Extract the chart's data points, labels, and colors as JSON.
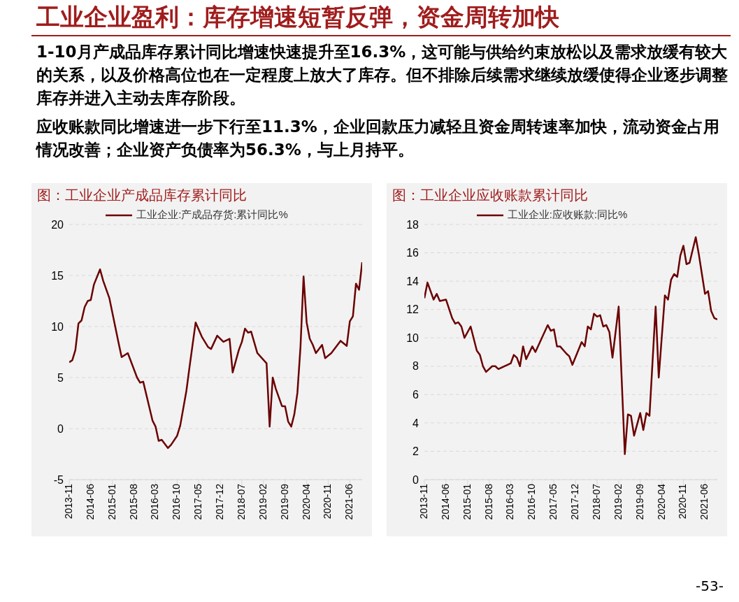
{
  "chart_data": [
    {
      "type": "other",
      "title": "工业企业盈利：库存增速短暂反弹，资金周转加快",
      "annotations": [
        "1-10月产成品库存累计同比增速快速提升至16.3%，这可能与供给约束放松以及需求放缓有较大的关系，以及价格高位也在一定程度上放大了库存。但不排除后续需求继续放缓使得企业逐步调整库存并进入主动去库存阶段。",
        "应收账款同比增速进一步下行至11.3%，企业回款压力减轻且资金周转速率加快，流动资金占用情况改善；企业资产负债率为56.3%，与上月持平。",
        "-53-"
      ]
    },
    {
      "type": "line",
      "title": "图：工业企业产成品库存累计同比",
      "legend": "top",
      "grid": "y",
      "xlim": [
        "2013-11",
        "2021-10"
      ],
      "xticks": [
        "2013-11",
        "2014-06",
        "2015-01",
        "2015-08",
        "2016-03",
        "2016-10",
        "2017-05",
        "2017-12",
        "2018-07",
        "2019-02",
        "2019-09",
        "2020-04",
        "2020-11",
        "2021-06"
      ],
      "ylim": [
        -5,
        20
      ],
      "yticks": [
        -5,
        0,
        5,
        10,
        15,
        20
      ],
      "series": [
        {
          "name": "工业企业:产成品存货:累计同比%",
          "color": "#6b0000",
          "x": [
            "2013-11",
            "2013-12",
            "2014-01",
            "2014-02",
            "2014-03",
            "2014-04",
            "2014-05",
            "2014-06",
            "2014-07",
            "2014-09",
            "2014-10",
            "2014-12",
            "2015-03",
            "2015-04",
            "2015-06",
            "2015-09",
            "2015-10",
            "2015-11",
            "2016-02",
            "2016-03",
            "2016-04",
            "2016-05",
            "2016-07",
            "2016-08",
            "2016-10",
            "2016-11",
            "2017-01",
            "2017-02",
            "2017-04",
            "2017-06",
            "2017-08",
            "2017-09",
            "2017-11",
            "2018-01",
            "2018-03",
            "2018-04",
            "2018-06",
            "2018-07",
            "2018-08",
            "2018-09",
            "2018-10",
            "2018-12",
            "2019-03",
            "2019-04",
            "2019-05",
            "2019-06",
            "2019-08",
            "2019-09",
            "2019-10",
            "2019-11",
            "2019-12",
            "2020-01",
            "2020-02",
            "2020-03",
            "2020-04",
            "2020-05",
            "2020-06",
            "2020-07",
            "2020-09",
            "2020-10",
            "2020-12",
            "2021-03",
            "2021-05",
            "2021-06",
            "2021-07",
            "2021-08",
            "2021-09",
            "2021-10"
          ],
          "values": [
            6.5,
            6.7,
            7.7,
            10.3,
            10.6,
            11.9,
            12.5,
            12.6,
            14.1,
            15.6,
            14.5,
            12.8,
            8.4,
            7.0,
            7.4,
            5.0,
            4.5,
            4.6,
            0.8,
            0.2,
            -1.2,
            -1.1,
            -1.9,
            -1.6,
            -0.7,
            0.3,
            3.7,
            6.0,
            10.4,
            9.0,
            8.0,
            7.8,
            9.1,
            8.5,
            8.8,
            5.5,
            7.7,
            8.5,
            9.8,
            9.4,
            9.5,
            7.4,
            6.4,
            0.2,
            5.0,
            3.9,
            2.2,
            2.2,
            0.7,
            0.2,
            1.4,
            3.5,
            8.0,
            14.9,
            10.4,
            8.8,
            8.2,
            7.4,
            8.2,
            6.9,
            7.4,
            8.6,
            8.1,
            10.5,
            11.0,
            14.2,
            13.6,
            16.3
          ]
        }
      ]
    },
    {
      "type": "line",
      "title": "图：工业企业应收账款累计同比",
      "legend": "top",
      "grid": "y",
      "xlim": [
        "2013-11",
        "2021-10"
      ],
      "xticks": [
        "2013-11",
        "2014-06",
        "2015-01",
        "2015-08",
        "2016-03",
        "2016-10",
        "2017-05",
        "2017-12",
        "2018-07",
        "2019-02",
        "2019-09",
        "2020-04",
        "2020-11",
        "2021-06"
      ],
      "ylim": [
        0,
        18
      ],
      "yticks": [
        0,
        2,
        4,
        6,
        8,
        10,
        12,
        14,
        16,
        18
      ],
      "series": [
        {
          "name": "工业企业:应收账款:同比%",
          "color": "#6b0000",
          "x": [
            "2013-11",
            "2013-12",
            "2014-02",
            "2014-03",
            "2014-04",
            "2014-06",
            "2014-08",
            "2014-09",
            "2014-10",
            "2014-11",
            "2014-12",
            "2015-02",
            "2015-04",
            "2015-05",
            "2015-06",
            "2015-07",
            "2015-09",
            "2015-10",
            "2015-11",
            "2016-03",
            "2016-04",
            "2016-05",
            "2016-06",
            "2016-07",
            "2016-08",
            "2016-10",
            "2016-11",
            "2017-03",
            "2017-04",
            "2017-05",
            "2017-06",
            "2017-07",
            "2017-09",
            "2017-10",
            "2017-11",
            "2018-02",
            "2018-03",
            "2018-04",
            "2018-05",
            "2018-06",
            "2018-07",
            "2018-08",
            "2018-09",
            "2018-10",
            "2018-11",
            "2018-12",
            "2019-02",
            "2019-04",
            "2019-05",
            "2019-06",
            "2019-07",
            "2019-09",
            "2019-10",
            "2019-11",
            "2019-12",
            "2020-02",
            "2020-03",
            "2020-05",
            "2020-06",
            "2020-07",
            "2020-08",
            "2020-09",
            "2020-10",
            "2020-11",
            "2020-12",
            "2021-01",
            "2021-03",
            "2021-04",
            "2021-05",
            "2021-06",
            "2021-07",
            "2021-08",
            "2021-09",
            "2021-10"
          ],
          "values": [
            12.8,
            13.9,
            12.7,
            13.1,
            12.6,
            12.7,
            11.4,
            11.0,
            11.1,
            10.8,
            10.0,
            10.8,
            9.1,
            8.8,
            8.0,
            7.6,
            8.0,
            8.0,
            7.8,
            8.2,
            8.8,
            8.6,
            8.0,
            9.4,
            8.5,
            9.4,
            9.0,
            10.9,
            10.5,
            10.6,
            9.4,
            9.4,
            8.9,
            8.7,
            8.1,
            9.7,
            9.4,
            10.8,
            10.6,
            11.7,
            11.5,
            11.6,
            10.8,
            10.9,
            10.4,
            8.6,
            12.2,
            1.8,
            4.6,
            4.5,
            3.1,
            4.7,
            3.5,
            4.7,
            4.5,
            12.2,
            7.2,
            13.0,
            12.7,
            14.1,
            14.5,
            14.3,
            15.8,
            16.5,
            15.2,
            15.3,
            17.1,
            15.9,
            14.5,
            13.1,
            13.3,
            11.9,
            11.4,
            11.3
          ]
        }
      ]
    }
  ]
}
